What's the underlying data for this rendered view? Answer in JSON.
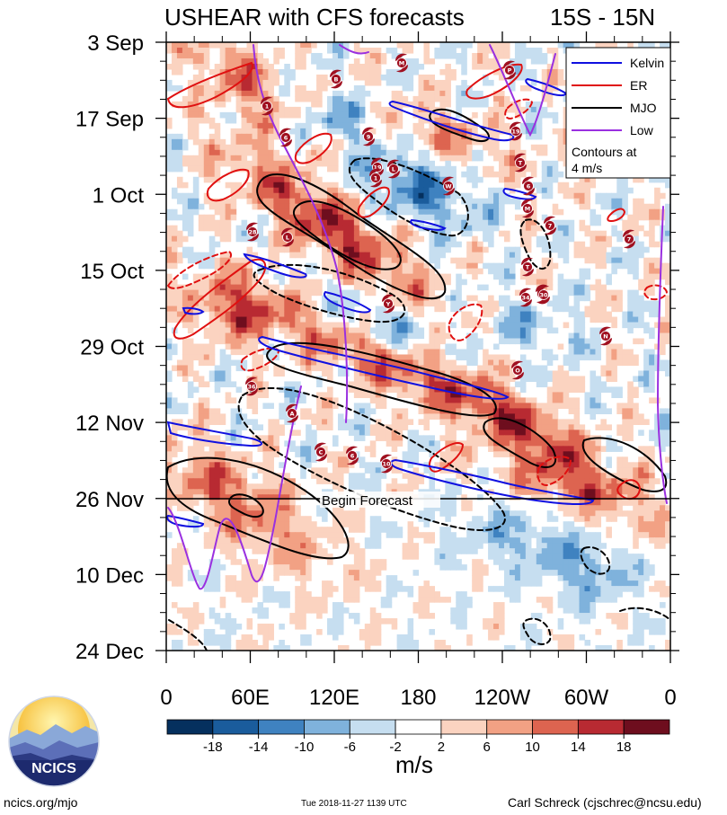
{
  "chart_data": {
    "type": "heatmap",
    "title": "USHEAR with CFS forecasts",
    "region": "15S - 15N",
    "y_axis": {
      "ticks": [
        "3 Sep",
        "17 Sep",
        "1 Oct",
        "15 Oct",
        "29 Oct",
        "12 Nov",
        "26 Nov",
        "10 Dec",
        "24 Dec"
      ],
      "range_days": [
        0,
        112
      ]
    },
    "x_axis": {
      "ticks": [
        "0",
        "60E",
        "120E",
        "180",
        "120W",
        "60W",
        "0"
      ],
      "range_deg": [
        0,
        360
      ]
    },
    "forecast_marker": {
      "label": "Begin Forecast",
      "date": "26 Nov"
    },
    "legend": {
      "placement": "top-right",
      "entries": [
        {
          "name": "Kelvin",
          "color": "#1010e0"
        },
        {
          "name": "ER",
          "color": "#e01010"
        },
        {
          "name": "MJO",
          "color": "#000000"
        },
        {
          "name": "Low",
          "color": "#9a30e0"
        }
      ],
      "note": "Contours at 4 m/s"
    },
    "colorbar": {
      "unit": "m/s",
      "tick_labels": [
        "-18",
        "-14",
        "-10",
        "-6",
        "-2",
        "2",
        "6",
        "10",
        "14",
        "18"
      ],
      "colors": [
        "#05305e",
        "#1a5c9c",
        "#3f82c0",
        "#7fb2dc",
        "#c6def0",
        "#ffffff",
        "#fbd3c0",
        "#f2a184",
        "#dd6450",
        "#b82a32",
        "#6e0e1e"
      ]
    },
    "storm_labels": [
      "M",
      "B",
      "1",
      "6",
      "19",
      "P",
      "19",
      "9",
      "T",
      "L",
      "28",
      "1",
      "W",
      "6",
      "7",
      "L",
      "T",
      "Y",
      "8",
      "34",
      "30",
      "7",
      "N",
      "O",
      "36",
      "A",
      "C",
      "6",
      "10",
      "M"
    ]
  },
  "footer": {
    "left": "ncics.org/mjo",
    "center": "Tue 2018-11-27 1139 UTC",
    "right": "Carl Schreck (cjschrec@ncsu.edu)"
  },
  "logo": {
    "text": "NCICS"
  }
}
